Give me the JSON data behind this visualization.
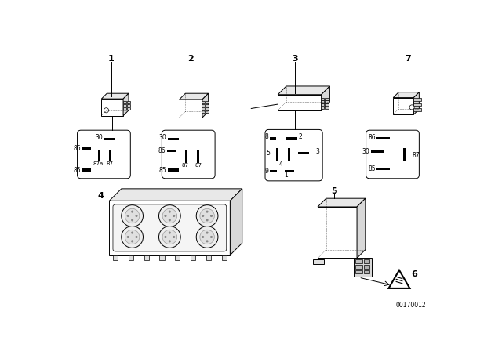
{
  "bg_color": "#ffffff",
  "doc_number": "00170012",
  "line_color": "#000000",
  "items": [
    "1",
    "2",
    "3",
    "4",
    "5",
    "6",
    "7"
  ],
  "relay1_pins": [
    "30",
    "86",
    "87a",
    "87",
    "85"
  ],
  "relay2_pins": [
    "30",
    "86",
    "87",
    "87",
    "85"
  ],
  "relay3_pins": [
    "8",
    "2",
    "5",
    "4",
    "3",
    "9",
    "1"
  ],
  "relay7_pins": [
    "86",
    "87",
    "30",
    "85"
  ]
}
